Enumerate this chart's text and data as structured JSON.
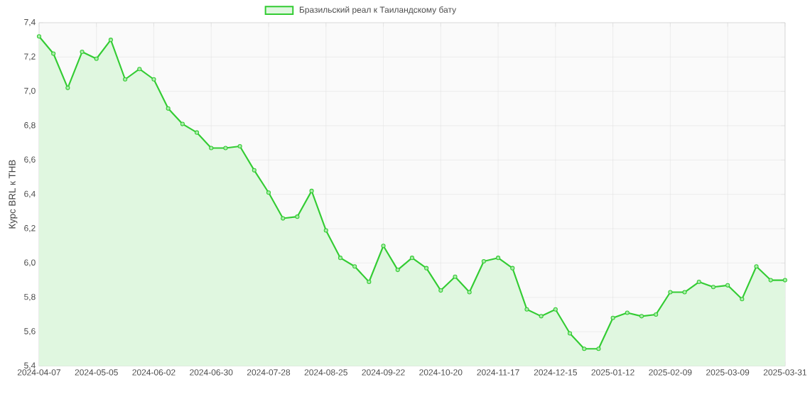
{
  "chart_data": {
    "type": "area",
    "ylabel": "Курс BRL к THB",
    "categories": [
      "2024-04-07",
      null,
      null,
      null,
      "2024-05-05",
      null,
      null,
      null,
      "2024-06-02",
      null,
      null,
      null,
      "2024-06-30",
      null,
      null,
      null,
      "2024-07-28",
      null,
      null,
      null,
      "2024-08-25",
      null,
      null,
      null,
      "2024-09-22",
      null,
      null,
      null,
      "2024-10-20",
      null,
      null,
      null,
      "2024-11-17",
      null,
      null,
      null,
      "2024-12-15",
      null,
      null,
      null,
      "2025-01-12",
      null,
      null,
      null,
      "2025-02-09",
      null,
      null,
      null,
      "2025-03-09",
      null,
      null,
      null,
      "2025-03-31"
    ],
    "series": [
      {
        "name": "Бразильский реал к Таиландскому бату",
        "color": "#33cc33",
        "values": [
          7.32,
          7.22,
          7.02,
          7.23,
          7.19,
          7.3,
          7.07,
          7.13,
          7.07,
          6.9,
          6.81,
          6.76,
          6.67,
          6.67,
          6.68,
          6.54,
          6.41,
          6.26,
          6.27,
          6.42,
          6.19,
          6.03,
          5.98,
          5.89,
          6.1,
          5.96,
          6.03,
          5.97,
          5.84,
          5.92,
          5.83,
          6.01,
          6.03,
          5.97,
          5.73,
          5.69,
          5.73,
          5.59,
          5.5,
          5.5,
          5.68,
          5.71,
          5.69,
          5.7,
          5.83,
          5.83,
          5.89,
          5.86,
          5.87,
          5.79,
          5.98,
          5.9,
          5.9
        ]
      }
    ],
    "ylim": [
      5.4,
      7.4
    ],
    "yticks": [
      {
        "value": 5.4,
        "label": "5,4"
      },
      {
        "value": 5.6,
        "label": "5,6"
      },
      {
        "value": 5.8,
        "label": "5,8"
      },
      {
        "value": 6.0,
        "label": "6,0"
      },
      {
        "value": 6.2,
        "label": "6,2"
      },
      {
        "value": 6.4,
        "label": "6,4"
      },
      {
        "value": 6.6,
        "label": "6,6"
      },
      {
        "value": 6.8,
        "label": "6,8"
      },
      {
        "value": 7.0,
        "label": "7,0"
      },
      {
        "value": 7.2,
        "label": "7,2"
      },
      {
        "value": 7.4,
        "label": "7,4"
      }
    ],
    "grid": true,
    "legend": "top",
    "marker": "circle",
    "line_style": "solid"
  }
}
